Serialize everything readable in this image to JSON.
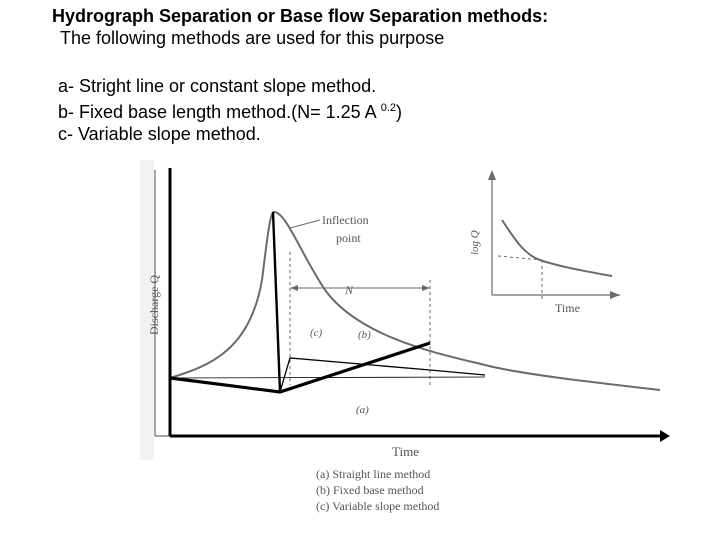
{
  "slide": {
    "heading": "Hydrograph Separation or Base flow Separation methods:",
    "intro": "The following methods are used for this purpose",
    "methods": [
      {
        "text": "a- Stright line or constant slope method."
      },
      {
        "text_before": "b- Fixed base length method.(N= 1.25 A ",
        "superscript": "0.2",
        "text_after": ")"
      },
      {
        "text": "c- Variable slope method."
      }
    ]
  },
  "figure": {
    "y_axis_label": "Discharge Q",
    "x_axis_label": "Time",
    "inflection_label_line1": "Inflection",
    "inflection_label_line2": "point",
    "n_label": "N",
    "tag_a": "(a)",
    "tag_b": "(b)",
    "tag_c": "(c)",
    "inset_y_label": "log Q",
    "inset_x_label": "Time",
    "legend": [
      "(a) Straight line method",
      "(b) Fixed base method",
      "(c) Variable slope method"
    ],
    "colors": {
      "scan_line": "#6b6b6b",
      "overlay_line": "#000000",
      "text": "#000000"
    }
  }
}
